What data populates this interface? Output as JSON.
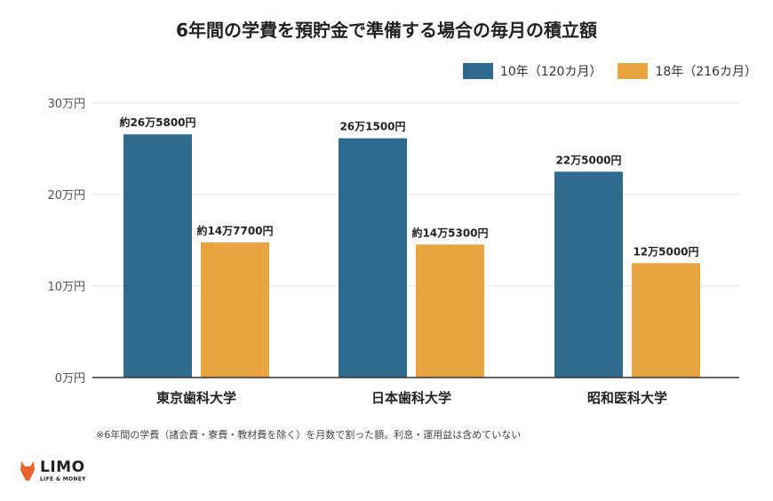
{
  "title": "6年間の学費を預貯金で準備する場合の毎月の積立額",
  "note": "※6年間の学費（諸会費・寮費・教材費を除く）を月数で割った額。利息・運用益は含めていない",
  "logo": {
    "main": "LIMO",
    "sub": "LIFE & MONEY",
    "accent_color": "#E8622A"
  },
  "chart_data": {
    "type": "bar",
    "categories": [
      "東京歯科大学",
      "日本歯科大学",
      "昭和医科大学"
    ],
    "series": [
      {
        "name": "10年（120カ月）",
        "color": "#2E6A8E",
        "values": [
          265800,
          261500,
          225000
        ],
        "labels": [
          "約26万5800円",
          "26万1500円",
          "22万5000円"
        ]
      },
      {
        "name": "18年（216カ月）",
        "color": "#E8A53F",
        "values": [
          147700,
          145300,
          125000
        ],
        "labels": [
          "約14万7700円",
          "約14万5300円",
          "12万5000円"
        ]
      }
    ],
    "ylim": [
      0,
      300000
    ],
    "yticks": [
      {
        "value": 0,
        "label": "0万円"
      },
      {
        "value": 100000,
        "label": "10万円"
      },
      {
        "value": 200000,
        "label": "20万円"
      },
      {
        "value": 300000,
        "label": "30万円"
      }
    ],
    "grid": true,
    "legend_position": "top-right"
  }
}
